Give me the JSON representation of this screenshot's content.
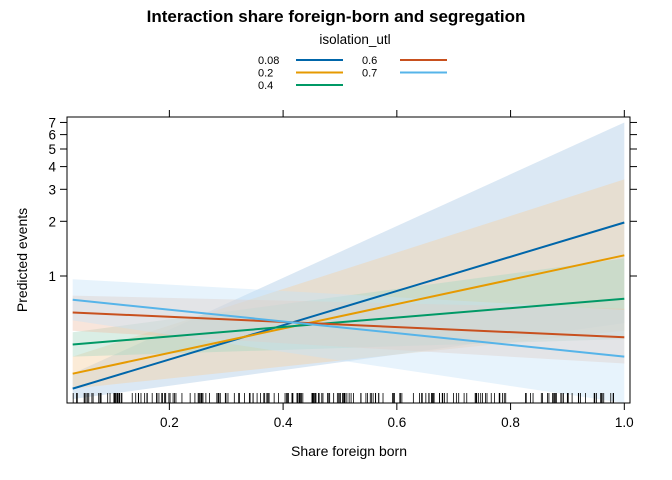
{
  "chart_data": {
    "type": "line",
    "title": "Interaction share foreign-born and segregation",
    "xlabel": "Share foreign born",
    "ylabel": "Predicted events",
    "xlim": [
      0.02,
      1.01
    ],
    "ylim": [
      0.2,
      7.5
    ],
    "y_scale": "log",
    "x_ticks": [
      0.2,
      0.4,
      0.6,
      0.8,
      1.0
    ],
    "x_tick_labels": [
      "0.2",
      "0.4",
      "0.6",
      "0.8",
      "1.0"
    ],
    "y_ticks": [
      1,
      2,
      3,
      4,
      5,
      6,
      7
    ],
    "y_tick_labels": [
      "1",
      "2",
      "3",
      "4",
      "5",
      "6",
      "7"
    ],
    "legend": {
      "title": "isolation_utl",
      "position": "top"
    },
    "series": [
      {
        "name": "0.08",
        "color": "#0066AA",
        "band_color": "#A9C8E5",
        "x": [
          0.03,
          1.0
        ],
        "y": [
          0.24,
          1.97
        ],
        "lower": [
          0.21,
          0.55
        ],
        "upper": [
          0.29,
          7.0
        ]
      },
      {
        "name": "0.2",
        "color": "#E69A00",
        "band_color": "#F5CFA0",
        "x": [
          0.03,
          1.0
        ],
        "y": [
          0.29,
          1.3
        ],
        "lower": [
          0.24,
          0.5
        ],
        "upper": [
          0.36,
          3.4
        ]
      },
      {
        "name": "0.4",
        "color": "#009966",
        "band_color": "#A8D7C0",
        "x": [
          0.03,
          1.0
        ],
        "y": [
          0.42,
          0.75
        ],
        "lower": [
          0.36,
          0.45
        ],
        "upper": [
          0.49,
          1.25
        ]
      },
      {
        "name": "0.6",
        "color": "#C8501E",
        "band_color": "#EFC2AA",
        "x": [
          0.03,
          1.0
        ],
        "y": [
          0.63,
          0.46
        ],
        "lower": [
          0.5,
          0.33
        ],
        "upper": [
          0.78,
          0.66
        ]
      },
      {
        "name": "0.7",
        "color": "#56B4E9",
        "band_color": "#C6E2F7",
        "x": [
          0.03,
          1.0
        ],
        "y": [
          0.74,
          0.36
        ],
        "lower": [
          0.57,
          0.2
        ],
        "upper": [
          0.96,
          0.65
        ]
      }
    ],
    "rug": "dense tick marks along the x-axis from about 0.03 to 0.99"
  }
}
